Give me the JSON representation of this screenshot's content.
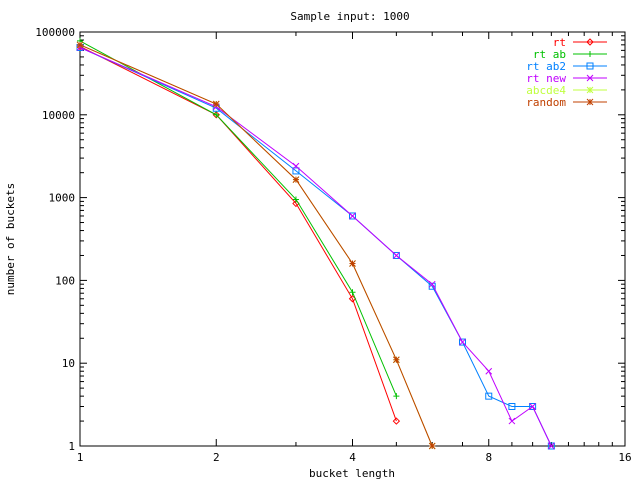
{
  "chart_data": {
    "type": "line",
    "title": "Sample input: 1000",
    "xlabel": "bucket length",
    "ylabel": "number of buckets",
    "x_scale": "log2",
    "y_scale": "log10",
    "xlim": [
      1,
      16
    ],
    "ylim": [
      1,
      100000
    ],
    "x_ticks": [
      1,
      2,
      4,
      8,
      16
    ],
    "x_tick_labels": [
      "1",
      "2",
      "4",
      "8",
      "16"
    ],
    "y_ticks": [
      1,
      10,
      100,
      1000,
      10000,
      100000
    ],
    "y_tick_labels": [
      "1",
      "10",
      "100",
      "1000",
      "10000",
      "100000"
    ],
    "grid": false,
    "legend_position": "top-right",
    "series": [
      {
        "name": "rt",
        "color": "#ff0000",
        "marker": "diamond",
        "x": [
          1,
          2,
          3,
          4,
          5
        ],
        "y": [
          67000,
          10000,
          850,
          60,
          2
        ]
      },
      {
        "name": "rt ab",
        "color": "#00c000",
        "marker": "plus",
        "x": [
          1,
          2,
          3,
          4,
          5
        ],
        "y": [
          78000,
          10000,
          950,
          72,
          4
        ]
      },
      {
        "name": "rt ab2",
        "color": "#0080ff",
        "marker": "square",
        "x": [
          1,
          2,
          3,
          4,
          5,
          6,
          7,
          8,
          9,
          10,
          11
        ],
        "y": [
          65000,
          12000,
          2100,
          600,
          200,
          85,
          18,
          4,
          3,
          3,
          1
        ]
      },
      {
        "name": "rt new",
        "color": "#c000ff",
        "marker": "cross",
        "x": [
          1,
          2,
          3,
          4,
          5,
          6,
          7,
          8,
          9,
          10,
          11
        ],
        "y": [
          65000,
          12500,
          2400,
          600,
          200,
          90,
          18,
          8,
          2,
          3,
          1
        ]
      },
      {
        "name": "abcde4",
        "color": "#c0ff40",
        "marker": "star",
        "x": [
          1,
          2,
          3,
          4,
          5,
          6
        ],
        "y": [
          70000,
          13500,
          1650,
          160,
          11,
          1
        ]
      },
      {
        "name": "random",
        "color": "#c04000",
        "marker": "star",
        "x": [
          1,
          2,
          3,
          4,
          5,
          6
        ],
        "y": [
          70000,
          13500,
          1650,
          160,
          11,
          1
        ]
      }
    ]
  }
}
